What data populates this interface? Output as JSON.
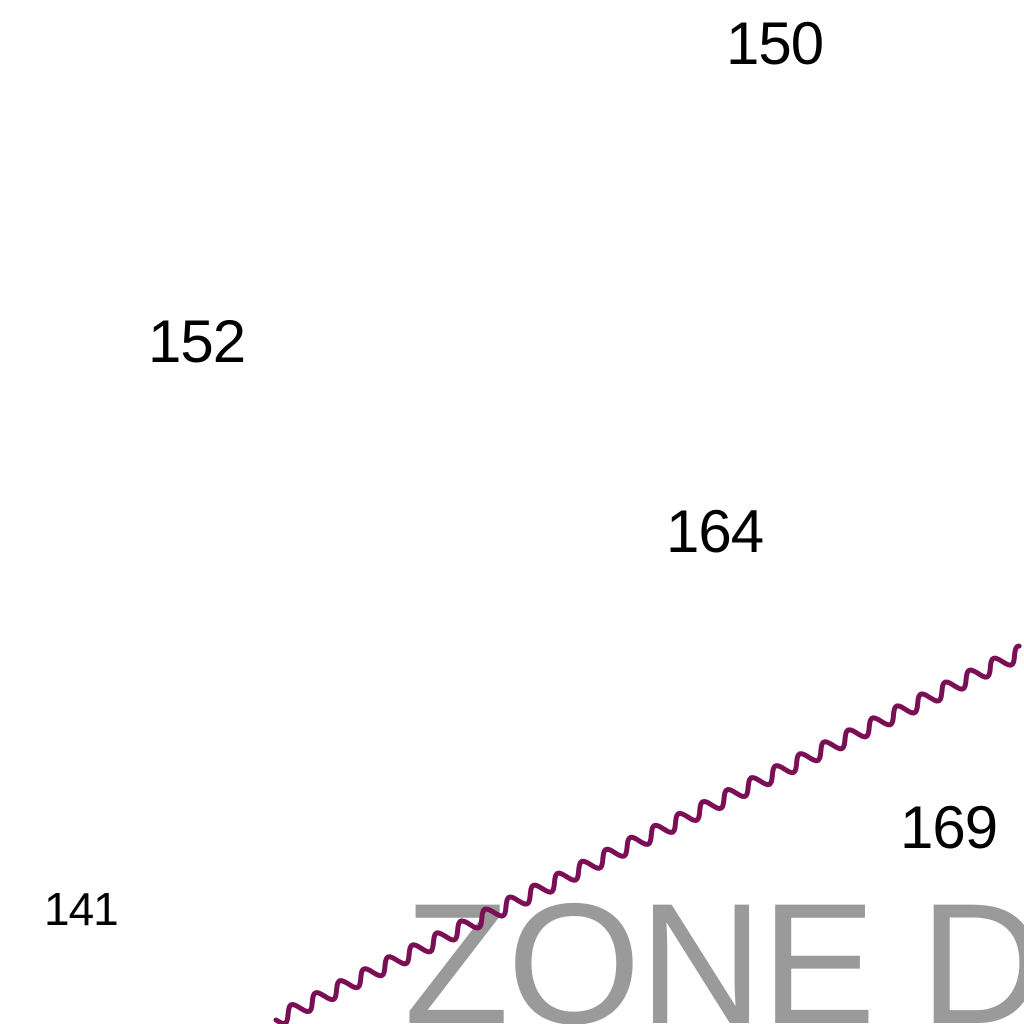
{
  "soundings": {
    "s150": "150",
    "s152": "152",
    "s164": "164",
    "s169": "169",
    "s141": "141"
  },
  "zone_label": "ZONE DI",
  "boundary": {
    "style": "zigzag",
    "color": "#7a0f55"
  },
  "colors": {
    "background": "#ffffff",
    "sounding_text": "#000000",
    "zone_text": "#9a9a9a"
  }
}
